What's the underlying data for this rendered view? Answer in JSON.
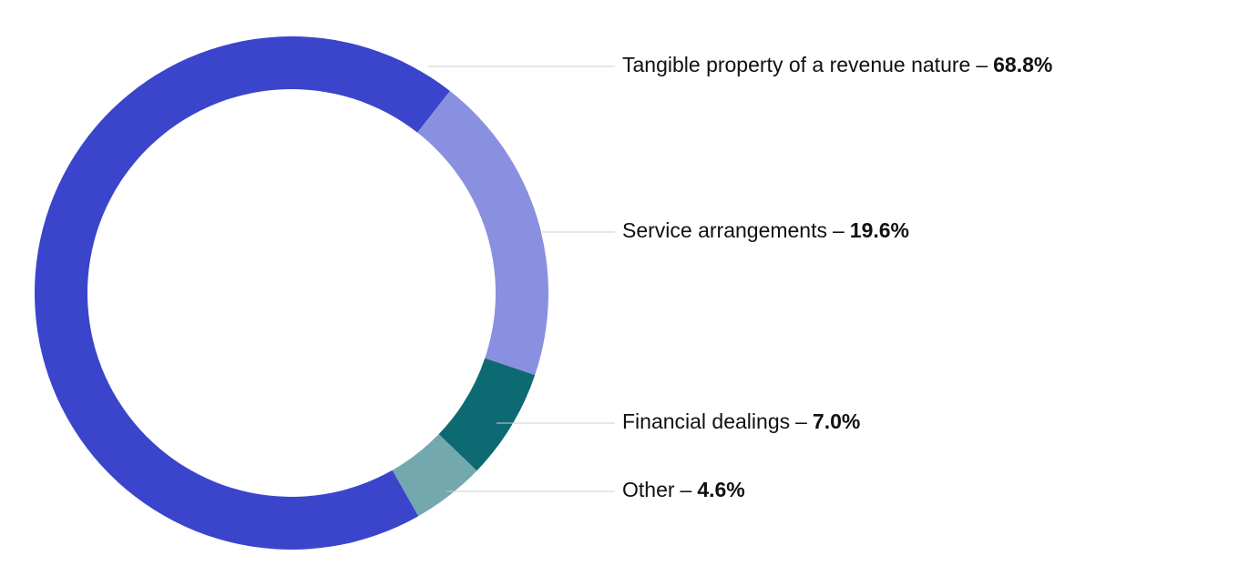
{
  "chart_data": {
    "type": "donut",
    "categories": [
      "Tangible property of a revenue nature",
      "Service arrangements",
      "Financial dealings",
      "Other"
    ],
    "values": [
      68.8,
      19.6,
      7.0,
      4.6
    ],
    "value_labels": [
      "68.8%",
      "19.6%",
      "7.0%",
      "4.6%"
    ],
    "separator": "–",
    "colors": [
      "#3a45cc",
      "#8a90e0",
      "#0e6a72",
      "#72a8ae"
    ]
  }
}
